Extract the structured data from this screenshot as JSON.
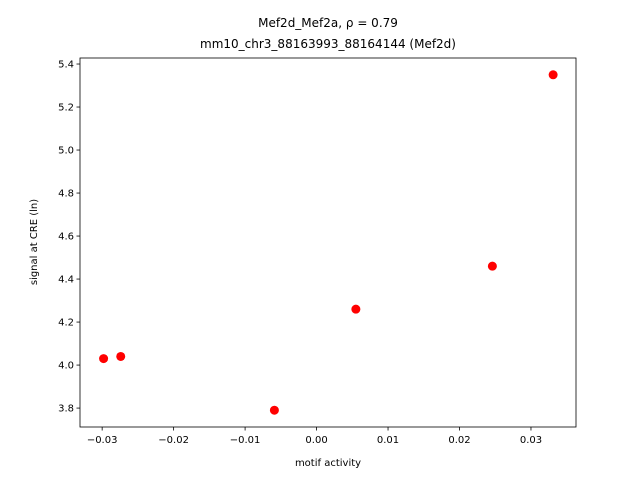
{
  "chart_data": {
    "type": "scatter",
    "title": "Mef2d_Mef2a, ρ = 0.79",
    "subtitle": "mm10_chr3_88163993_88164144 (Mef2d)",
    "x_label": "motif activity",
    "y_label": "signal at CRE (ln)",
    "color": "#ff0000",
    "x": [
      -0.0298,
      -0.0274,
      -0.0059,
      0.0055,
      0.0246,
      0.0331
    ],
    "values": [
      4.03,
      4.04,
      3.79,
      4.26,
      4.46,
      5.35
    ],
    "xlim": [
      -0.0331,
      0.0363
    ],
    "ylim": [
      3.712,
      5.428
    ],
    "xticks": [
      {
        "value": -0.03,
        "label": "−0.03"
      },
      {
        "value": -0.02,
        "label": "−0.02"
      },
      {
        "value": -0.01,
        "label": "−0.01"
      },
      {
        "value": 0,
        "label": "0.00"
      },
      0.01,
      0.02,
      0.03
    ],
    "yticks": [
      3.8,
      {
        "value": 4,
        "label": "4.0"
      },
      4.2,
      4.4,
      4.6,
      4.8,
      {
        "value": 5,
        "label": "5.0"
      },
      5.2,
      5.4
    ]
  }
}
